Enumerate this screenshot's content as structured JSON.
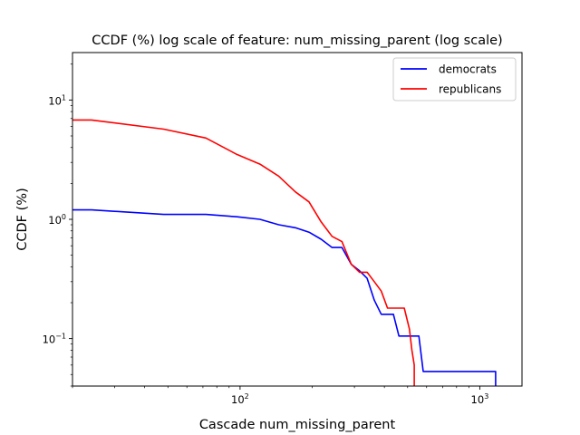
{
  "chart_data": {
    "type": "line",
    "title": "CCDF (%) log scale of feature: num_missing_parent (log scale)",
    "xlabel": "Cascade num_missing_parent",
    "ylabel": "CCDF (%)",
    "xscale": "log",
    "yscale": "log",
    "xlim": [
      20,
      1500
    ],
    "ylim": [
      0.04,
      25
    ],
    "xticks": [
      {
        "value": 100,
        "base": "10",
        "exp": "2"
      },
      {
        "value": 1000,
        "base": "10",
        "exp": "3"
      }
    ],
    "yticks": [
      {
        "value": 0.1,
        "base": "10",
        "exp": "−1"
      },
      {
        "value": 1,
        "base": "10",
        "exp": "0"
      },
      {
        "value": 10,
        "base": "10",
        "exp": "1"
      }
    ],
    "grid": false,
    "legend": "top-right",
    "series": [
      {
        "name": "democrats",
        "color": "#0000ff",
        "points": [
          [
            20,
            1.2
          ],
          [
            24,
            1.2
          ],
          [
            48,
            1.1
          ],
          [
            72,
            1.1
          ],
          [
            97,
            1.05
          ],
          [
            121,
            1.0
          ],
          [
            145,
            0.9
          ],
          [
            170,
            0.85
          ],
          [
            194,
            0.78
          ],
          [
            218,
            0.68
          ],
          [
            242,
            0.58
          ],
          [
            266,
            0.58
          ],
          [
            291,
            0.42
          ],
          [
            315,
            0.37
          ],
          [
            339,
            0.32
          ],
          [
            363,
            0.21
          ],
          [
            388,
            0.16
          ],
          [
            436,
            0.16
          ],
          [
            460,
            0.105
          ],
          [
            557,
            0.105
          ],
          [
            581,
            0.053
          ],
          [
            1164,
            0.053
          ],
          [
            1164,
            0.03
          ]
        ]
      },
      {
        "name": "republicans",
        "color": "#ff0000",
        "points": [
          [
            20,
            6.8
          ],
          [
            24,
            6.8
          ],
          [
            48,
            5.7
          ],
          [
            72,
            4.8
          ],
          [
            97,
            3.5
          ],
          [
            121,
            2.9
          ],
          [
            145,
            2.3
          ],
          [
            170,
            1.7
          ],
          [
            194,
            1.4
          ],
          [
            218,
            0.95
          ],
          [
            242,
            0.72
          ],
          [
            266,
            0.65
          ],
          [
            291,
            0.42
          ],
          [
            315,
            0.36
          ],
          [
            339,
            0.36
          ],
          [
            363,
            0.3
          ],
          [
            388,
            0.25
          ],
          [
            412,
            0.18
          ],
          [
            460,
            0.18
          ],
          [
            484,
            0.18
          ],
          [
            509,
            0.12
          ],
          [
            521,
            0.08
          ],
          [
            533,
            0.06
          ],
          [
            533,
            0.03
          ]
        ]
      }
    ]
  }
}
